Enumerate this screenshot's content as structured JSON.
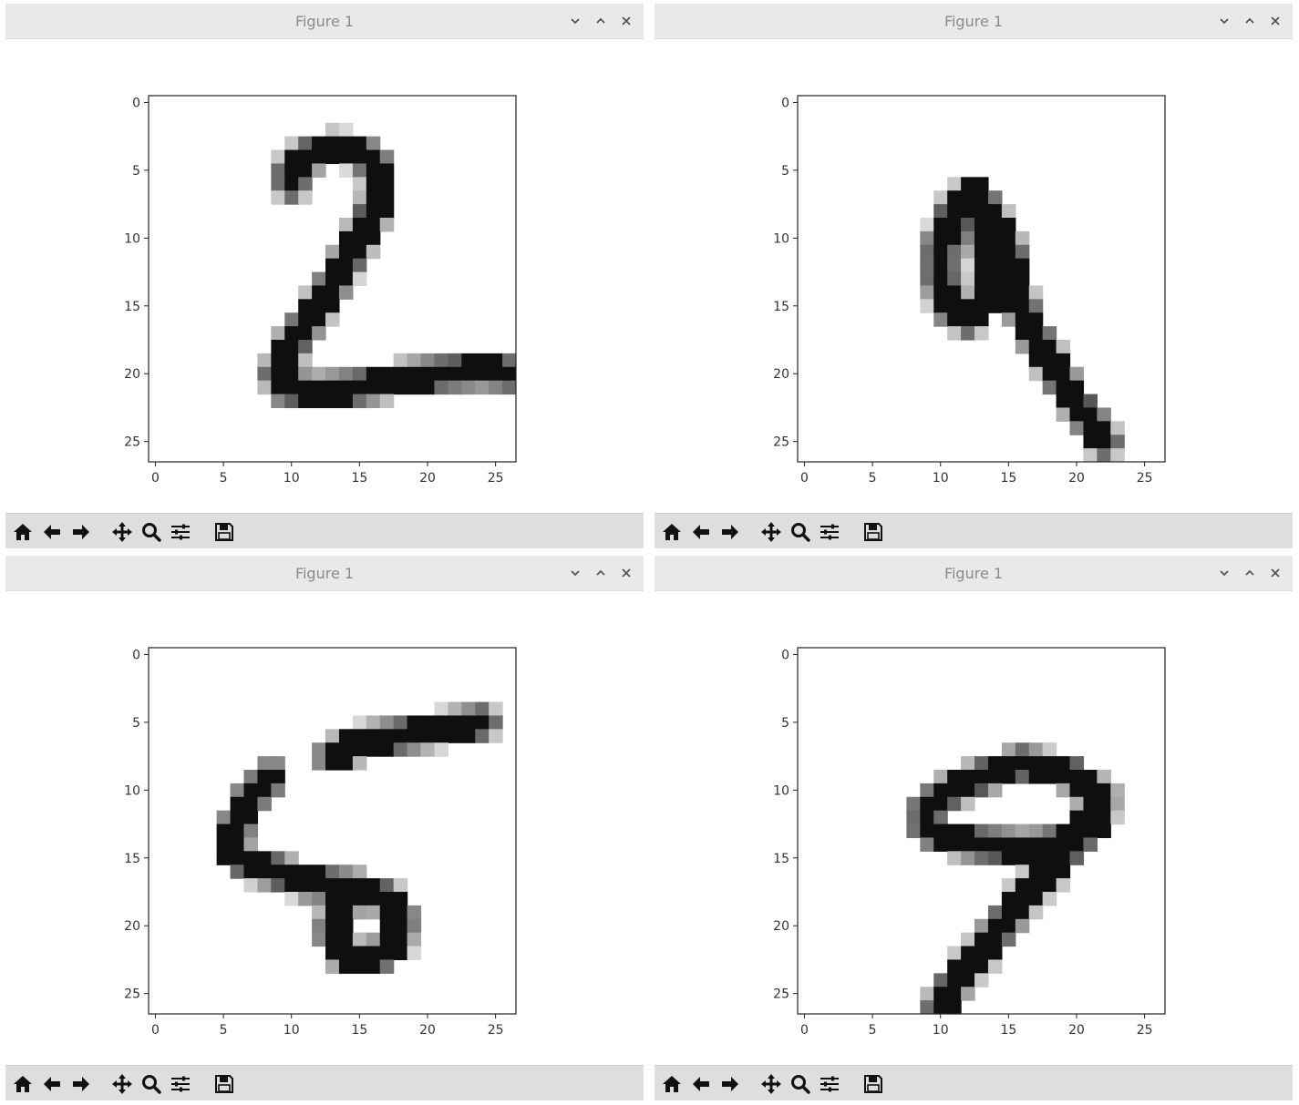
{
  "windows": [
    {
      "title": "Figure 1",
      "controls": [
        "chevron-down-icon",
        "chevron-up-icon",
        "close-icon"
      ],
      "toolbar": [
        "home-icon",
        "back-arrow-icon",
        "forward-arrow-icon",
        "pan-move-icon",
        "zoom-magnifier-icon",
        "configure-subplots-icon",
        "save-floppy-icon"
      ],
      "axes": {
        "x_ticks": [
          "0",
          "5",
          "10",
          "15",
          "20",
          "25"
        ],
        "y_ticks": [
          "0",
          "5",
          "10",
          "15",
          "20",
          "25"
        ]
      }
    },
    {
      "title": "Figure 1",
      "controls": [
        "chevron-down-icon",
        "chevron-up-icon",
        "close-icon"
      ],
      "toolbar": [
        "home-icon",
        "back-arrow-icon",
        "forward-arrow-icon",
        "pan-move-icon",
        "zoom-magnifier-icon",
        "configure-subplots-icon",
        "save-floppy-icon"
      ],
      "axes": {
        "x_ticks": [
          "0",
          "5",
          "10",
          "15",
          "20",
          "25"
        ],
        "y_ticks": [
          "0",
          "5",
          "10",
          "15",
          "20",
          "25"
        ]
      }
    },
    {
      "title": "Figure 1",
      "controls": [
        "chevron-down-icon",
        "chevron-up-icon",
        "close-icon"
      ],
      "toolbar": [
        "home-icon",
        "back-arrow-icon",
        "forward-arrow-icon",
        "pan-move-icon",
        "zoom-magnifier-icon",
        "configure-subplots-icon",
        "save-floppy-icon"
      ],
      "axes": {
        "x_ticks": [
          "0",
          "5",
          "10",
          "15",
          "20",
          "25"
        ],
        "y_ticks": [
          "0",
          "5",
          "10",
          "15",
          "20",
          "25"
        ]
      }
    },
    {
      "title": "Figure 1",
      "controls": [
        "chevron-down-icon",
        "chevron-up-icon",
        "close-icon"
      ],
      "toolbar": [
        "home-icon",
        "back-arrow-icon",
        "forward-arrow-icon",
        "pan-move-icon",
        "zoom-magnifier-icon",
        "configure-subplots-icon",
        "save-floppy-icon"
      ],
      "axes": {
        "x_ticks": [
          "0",
          "5",
          "10",
          "15",
          "20",
          "25"
        ],
        "y_ticks": [
          "0",
          "5",
          "10",
          "15",
          "20",
          "25"
        ]
      }
    }
  ],
  "chart_data": [
    {
      "type": "heatmap",
      "colormap": "gray_r",
      "xlim": [
        0,
        27
      ],
      "ylim": [
        27,
        0
      ],
      "digit_strokes": [
        [
          [
            10,
            6
          ],
          [
            10,
            5
          ],
          [
            11,
            4
          ],
          [
            13,
            3.4
          ],
          [
            15,
            3.6
          ],
          [
            16.5,
            5
          ],
          [
            16.3,
            7.5
          ],
          [
            15,
            10
          ],
          [
            13.6,
            12.5
          ],
          [
            12,
            15
          ],
          [
            10.2,
            17.5
          ],
          [
            9,
            20
          ],
          [
            9.5,
            21
          ],
          [
            12,
            21.3
          ],
          [
            15,
            21
          ],
          [
            18,
            20.4
          ],
          [
            21,
            20
          ],
          [
            24,
            19.8
          ],
          [
            26,
            20
          ]
        ]
      ],
      "digit_color": "#111111"
    },
    {
      "type": "heatmap",
      "colormap": "gray_r",
      "xlim": [
        0,
        27
      ],
      "ylim": [
        27,
        0
      ],
      "digit_strokes": [
        [
          [
            12.5,
            6.5
          ],
          [
            11,
            8
          ],
          [
            10,
            10.5
          ],
          [
            10,
            13
          ],
          [
            10.5,
            15
          ],
          [
            12,
            16
          ],
          [
            13.3,
            14.5
          ],
          [
            13.5,
            12
          ],
          [
            13,
            9.5
          ],
          [
            12.5,
            6.5
          ],
          [
            14,
            9
          ],
          [
            15,
            11
          ],
          [
            15.3,
            13.5
          ],
          [
            16.5,
            16.5
          ],
          [
            18,
            19
          ],
          [
            19.5,
            21.5
          ],
          [
            21,
            23.5
          ],
          [
            22,
            25
          ]
        ]
      ],
      "digit_color": "#111111"
    },
    {
      "type": "heatmap",
      "colormap": "gray_r",
      "xlim": [
        0,
        27
      ],
      "ylim": [
        27,
        0
      ],
      "digit_strokes": [
        [
          [
            13,
            7.5
          ],
          [
            15,
            6.5
          ],
          [
            18,
            6
          ],
          [
            21,
            5.5
          ],
          [
            24,
            5
          ]
        ],
        [
          [
            8.5,
            9
          ],
          [
            7,
            10.5
          ],
          [
            6,
            12.5
          ],
          [
            5.5,
            14.5
          ],
          [
            7,
            15.5
          ],
          [
            9,
            16
          ],
          [
            11,
            16.8
          ],
          [
            13,
            17
          ],
          [
            15,
            17.3
          ],
          [
            17,
            18
          ],
          [
            18,
            19.5
          ],
          [
            17.6,
            21.5
          ],
          [
            15.8,
            22.5
          ],
          [
            14,
            22.2
          ],
          [
            13,
            20.5
          ],
          [
            13.5,
            18.5
          ],
          [
            15,
            17.5
          ]
        ]
      ],
      "digit_color": "#111111"
    },
    {
      "type": "heatmap",
      "colormap": "gray_r",
      "xlim": [
        0,
        27
      ],
      "ylim": [
        27,
        0
      ],
      "digit_strokes": [
        [
          [
            16,
            8
          ],
          [
            19.5,
            8.8
          ],
          [
            21.8,
            10.5
          ],
          [
            21.5,
            12.5
          ],
          [
            19.5,
            13.8
          ],
          [
            16.5,
            14.3
          ],
          [
            13,
            14
          ],
          [
            10.5,
            13.5
          ],
          [
            9,
            12.8
          ],
          [
            9,
            11.3
          ],
          [
            10.5,
            10.2
          ],
          [
            13,
            9
          ],
          [
            16,
            8
          ]
        ],
        [
          [
            21.5,
            11
          ],
          [
            20,
            13.5
          ],
          [
            18,
            16
          ],
          [
            16,
            18
          ],
          [
            14.5,
            20
          ],
          [
            13,
            22
          ],
          [
            11.5,
            23.5
          ],
          [
            10.5,
            25
          ],
          [
            10,
            26
          ]
        ]
      ],
      "digit_color": "#111111"
    }
  ]
}
